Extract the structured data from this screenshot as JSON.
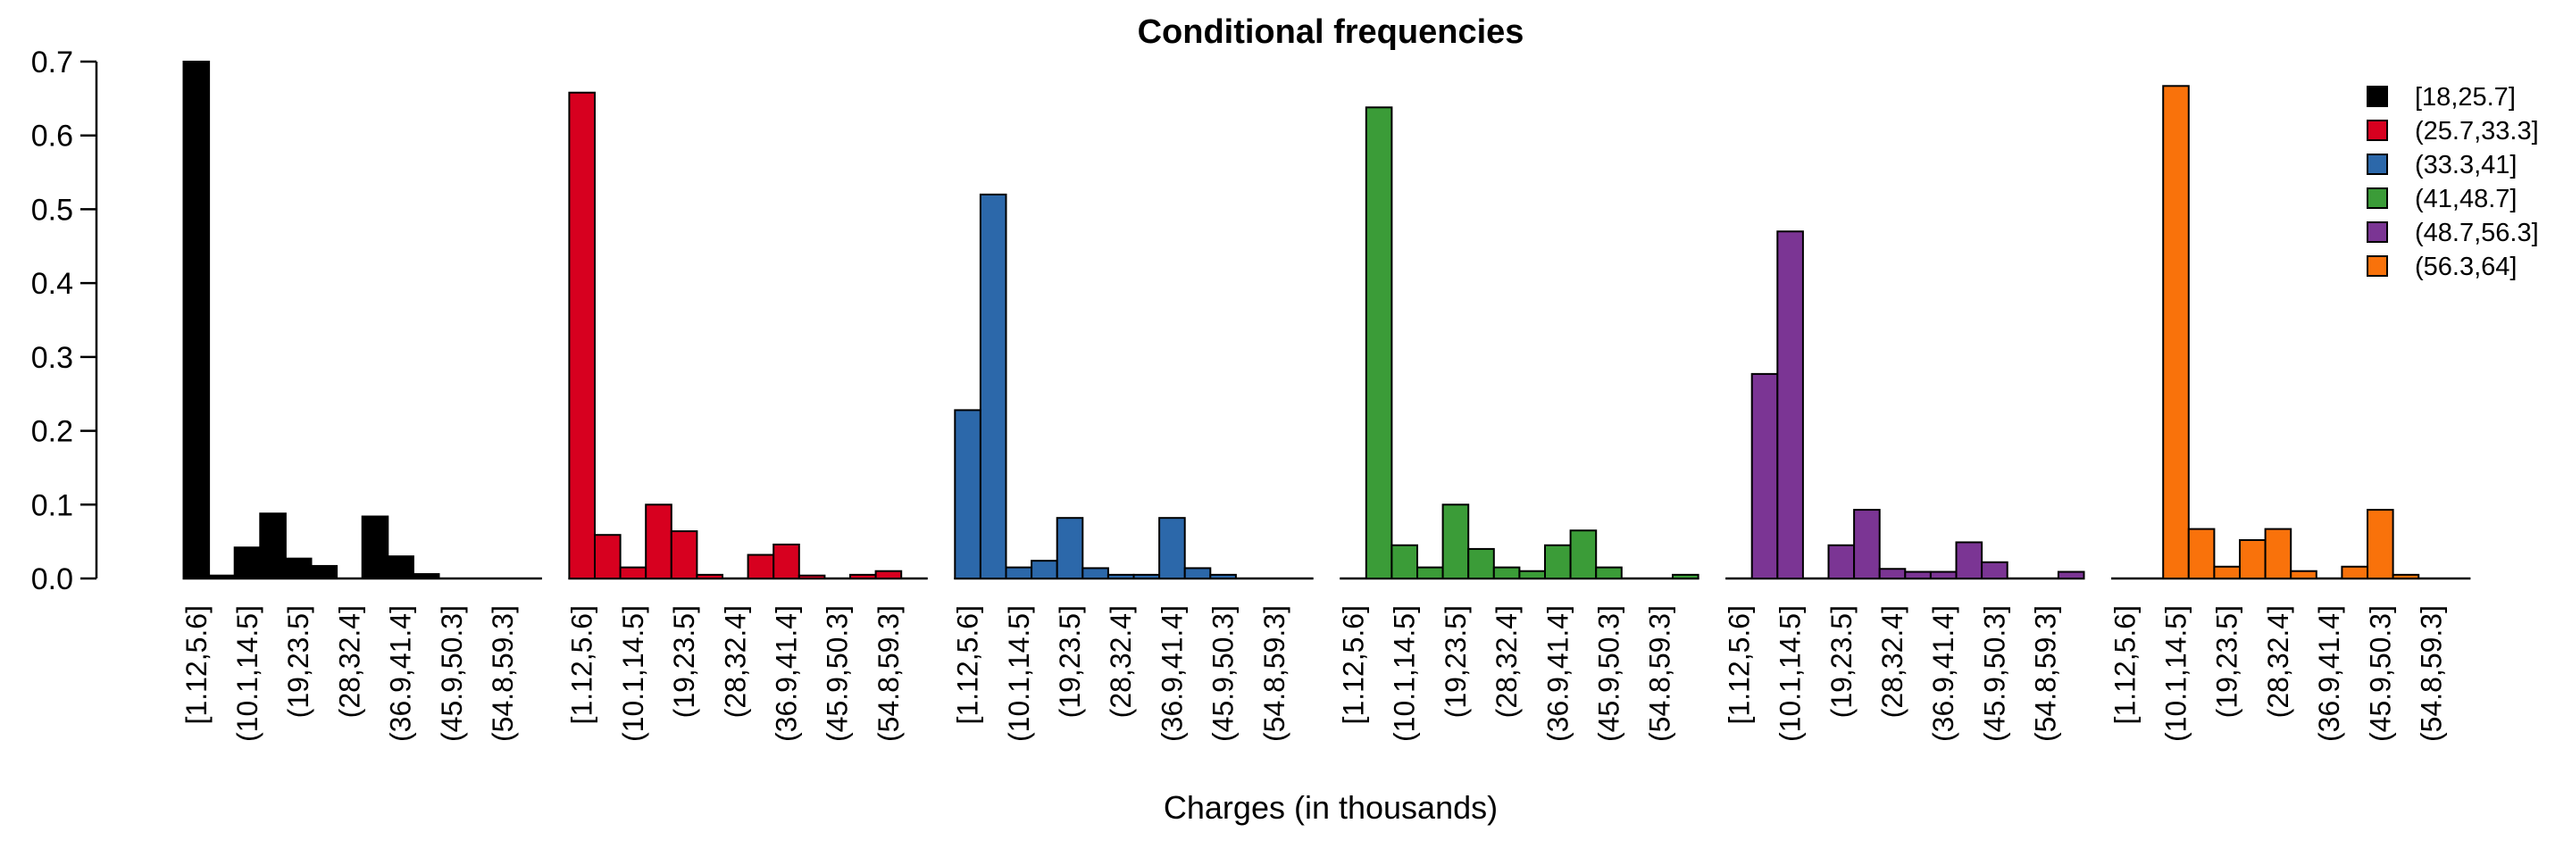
{
  "chart_data": {
    "type": "bar",
    "title": "Conditional frequencies",
    "xlabel": "Charges (in thousands)",
    "ylabel": "",
    "ylim": [
      0,
      0.7
    ],
    "yticks": [
      "0.0",
      "0.1",
      "0.2",
      "0.3",
      "0.4",
      "0.5",
      "0.6",
      "0.7"
    ],
    "legend_position": "top-right",
    "bins": [
      "[1.12,5.6]",
      "(5.6,10.1]",
      "(10.1,14.5]",
      "(14.5,19]",
      "(19,23.5]",
      "(23.5,28]",
      "(28,32.4]",
      "(32.4,36.9]",
      "(36.9,41.4]",
      "(41.4,45.9]",
      "(45.9,50.3]",
      "(50.3,54.8]",
      "(54.8,59.3]",
      "(59.3,63.8]"
    ],
    "tick_labels": [
      "[1.12,5.6]",
      "(10.1,14.5]",
      "(19,23.5]",
      "(28,32.4]",
      "(36.9,41.4]",
      "(45.9,50.3]",
      "(54.8,59.3]"
    ],
    "series": [
      {
        "name": "[18,25.7]",
        "color": "#000000",
        "values": [
          0.7,
          0.004,
          0.042,
          0.088,
          0.027,
          0.017,
          0.0,
          0.084,
          0.03,
          0.006,
          0.0,
          0.0,
          0.0,
          0.0
        ]
      },
      {
        "name": "(25.7,33.3]",
        "color": "#d7001f",
        "values": [
          0.658,
          0.059,
          0.015,
          0.1,
          0.064,
          0.005,
          0.0,
          0.032,
          0.046,
          0.004,
          0.0,
          0.005,
          0.01,
          0.0
        ]
      },
      {
        "name": "(33.3,41]",
        "color": "#2c68aa",
        "values": [
          0.228,
          0.52,
          0.015,
          0.024,
          0.082,
          0.014,
          0.005,
          0.005,
          0.082,
          0.014,
          0.005,
          0.0,
          0.0,
          0.0
        ]
      },
      {
        "name": "(41,48.7]",
        "color": "#3b9c38",
        "values": [
          0.0,
          0.638,
          0.045,
          0.015,
          0.1,
          0.04,
          0.015,
          0.01,
          0.045,
          0.065,
          0.015,
          0.0,
          0.0,
          0.005
        ]
      },
      {
        "name": "(48.7,56.3]",
        "color": "#7b3594",
        "values": [
          0.0,
          0.277,
          0.47,
          0.0,
          0.045,
          0.093,
          0.013,
          0.009,
          0.009,
          0.049,
          0.022,
          0.0,
          0.0,
          0.009
        ]
      },
      {
        "name": "(56.3,64]",
        "color": "#f9720b",
        "values": [
          0.0,
          0.0,
          0.667,
          0.067,
          0.016,
          0.052,
          0.067,
          0.01,
          0.0,
          0.016,
          0.093,
          0.005,
          0.0,
          0.0
        ]
      }
    ]
  }
}
